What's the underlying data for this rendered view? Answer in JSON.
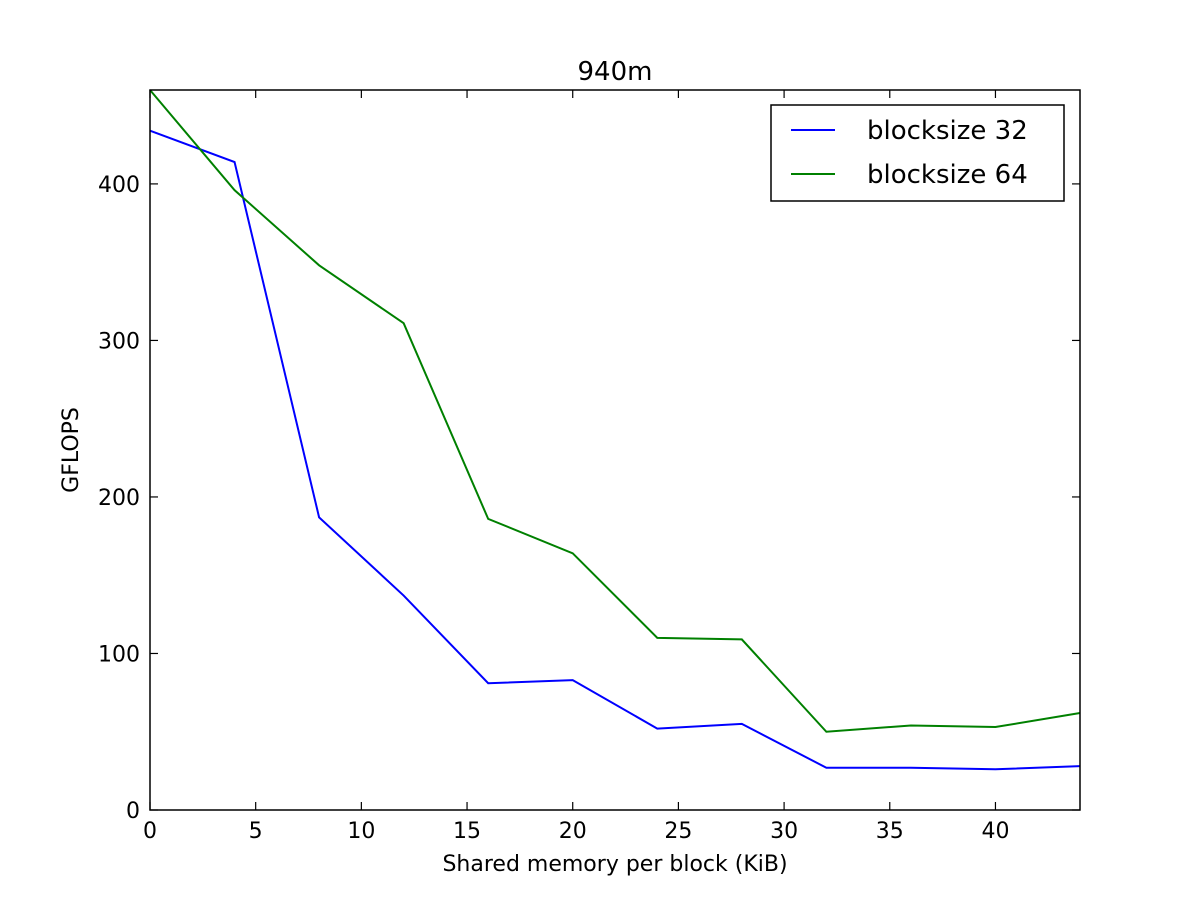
{
  "chart_data": {
    "type": "line",
    "title": "940m",
    "xlabel": "Shared memory per block (KiB)",
    "ylabel": "GFLOPS",
    "xlim": [
      0,
      44
    ],
    "ylim": [
      0,
      460
    ],
    "xticks": [
      0,
      5,
      10,
      15,
      20,
      25,
      30,
      35,
      40
    ],
    "yticks": [
      0,
      100,
      200,
      300,
      400
    ],
    "xtick_labels": [
      "0",
      "5",
      "10",
      "15",
      "20",
      "25",
      "30",
      "35",
      "40"
    ],
    "ytick_labels": [
      "0",
      "100",
      "200",
      "300",
      "400"
    ],
    "x": [
      0,
      4,
      8,
      12,
      16,
      20,
      24,
      28,
      32,
      36,
      40,
      44
    ],
    "legend_position": "top-right",
    "grid": false,
    "series": [
      {
        "name": "blocksize 32",
        "color": "#0000ff",
        "values": [
          434,
          414,
          187,
          137,
          81,
          83,
          52,
          55,
          27,
          27,
          26,
          28
        ]
      },
      {
        "name": "blocksize 64",
        "color": "#008000",
        "values": [
          460,
          396,
          348,
          311,
          186,
          164,
          110,
          109,
          50,
          54,
          53,
          62
        ]
      }
    ]
  }
}
